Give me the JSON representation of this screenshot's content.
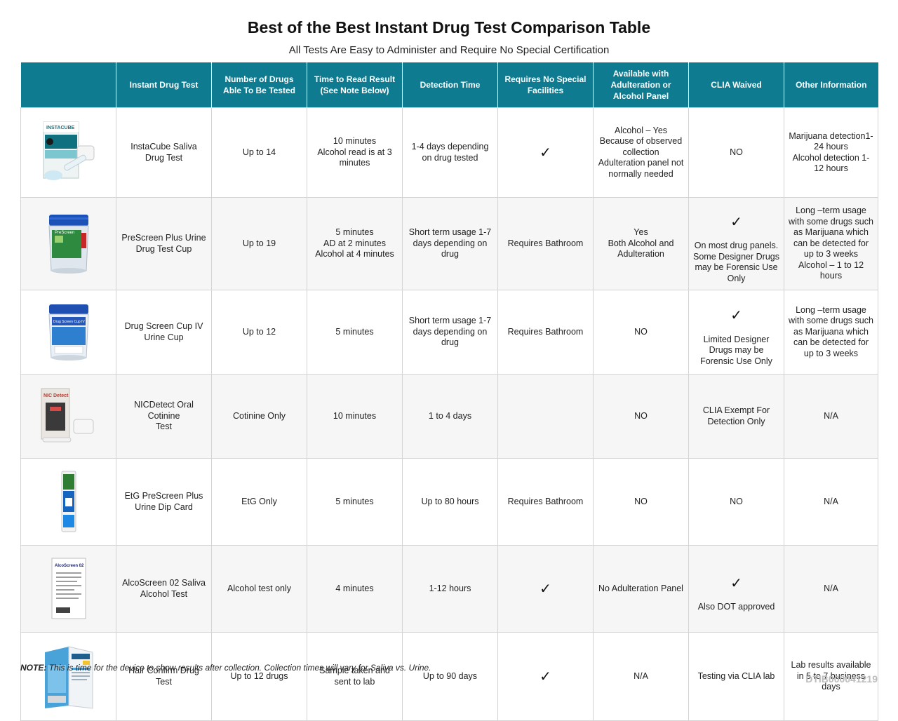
{
  "title": "Best of the Best Instant Drug Test Comparison Table",
  "subtitle": "All Tests Are Easy to Administer and Require No Special Certification",
  "columns": [
    "",
    "Instant Drug Test",
    "Number of Drugs Able To Be Tested",
    "Time to Read Result (See Note Below)",
    "Detection Time",
    "Requires No Special Facilities",
    "Available with Adulteration or Alcohol Panel",
    "CLIA Waived",
    "Other Information"
  ],
  "check_mark": "✓",
  "rows": [
    {
      "image": "instacube-saliva-product-image",
      "image_text": "INSTACUBE",
      "test": "InstaCube Saliva Drug Test",
      "drugs": "Up to 14",
      "read_time": "10 minutes\nAlcohol read is at 3 minutes",
      "detection": "1-4 days depending on drug tested",
      "facilities": "check",
      "panel": "Alcohol – Yes\nBecause of observed collection\nAdulteration panel not normally needed",
      "clia": "NO",
      "other": "Marijuana detection1-24 hours\nAlcohol detection 1-12 hours"
    },
    {
      "image": "prescreen-plus-cup-product-image",
      "image_text": "PreScreen",
      "test": "PreScreen Plus Urine Drug Test Cup",
      "drugs": "Up to 19",
      "read_time": "5 minutes\nAD at 2 minutes\nAlcohol at 4 minutes",
      "detection": "Short term usage 1-7 days depending on drug",
      "facilities": "Requires Bathroom",
      "panel": "Yes\nBoth Alcohol and Adulteration",
      "clia": "check",
      "clia_note": "On most drug panels. Some Designer Drugs may be Forensic Use Only",
      "other": "Long –term usage with some drugs such as Marijuana which can be detected for up to 3 weeks\nAlcohol – 1 to 12 hours"
    },
    {
      "image": "drug-screen-cup-iv-product-image",
      "image_text": "Drug Screen Cup IV",
      "test": "Drug Screen Cup IV Urine Cup",
      "drugs": "Up to 12",
      "read_time": "5 minutes",
      "detection": "Short term usage 1-7 days depending on drug",
      "facilities": "Requires Bathroom",
      "panel": "NO",
      "clia": "check",
      "clia_note": "Limited Designer Drugs may be Forensic Use Only",
      "other": "Long –term usage with some drugs such as Marijuana which can be detected for up to 3 weeks"
    },
    {
      "image": "nicdetect-oral-product-image",
      "image_text": "NIC Detect",
      "test": "NICDetect Oral Cotinine\nTest",
      "drugs": "Cotinine Only",
      "read_time": "10 minutes",
      "detection": "1 to 4 days",
      "facilities": "",
      "panel": "NO",
      "clia": "CLIA Exempt For Detection Only",
      "other": "N/A"
    },
    {
      "image": "etg-prescreen-dip-card-product-image",
      "image_text": "",
      "test": "EtG PreScreen Plus Urine Dip Card",
      "drugs": "EtG Only",
      "read_time": "5 minutes",
      "detection": "Up to 80 hours",
      "facilities": "Requires Bathroom",
      "panel": "NO",
      "clia": "NO",
      "other": "N/A"
    },
    {
      "image": "alcoscreen-02-product-image",
      "image_text": "AlcoScreen 02",
      "test": "AlcoScreen 02 Saliva Alcohol Test",
      "drugs": "Alcohol test only",
      "read_time": "4 minutes",
      "detection": "1-12 hours",
      "facilities": "check",
      "panel": "No Adulteration Panel",
      "clia": "check",
      "clia_note": "Also DOT approved",
      "other": "N/A"
    },
    {
      "image": "hair-confirm-product-image",
      "image_text": "",
      "test": "Hair Confirm Drug Test",
      "drugs": "Up to 12 drugs",
      "read_time": "Sample taken and sent to lab",
      "detection": "Up to 90 days",
      "facilities": "check",
      "panel": "N/A",
      "clia": "Testing via CLIA lab",
      "other": "Lab results available in 5 to 7 business days"
    }
  ],
  "note_label": "NOTE:",
  "note_text": "This is time for the device to show results after collection. Collection times will vary for Saliva vs. Urine.",
  "document_id": "DTIB000041219",
  "colors": {
    "header_bg": "#0e7b91",
    "header_text": "#ffffff",
    "grid": "#d4d4d4",
    "stripe": "#f6f6f6",
    "doc_id": "#bcbcbc"
  }
}
